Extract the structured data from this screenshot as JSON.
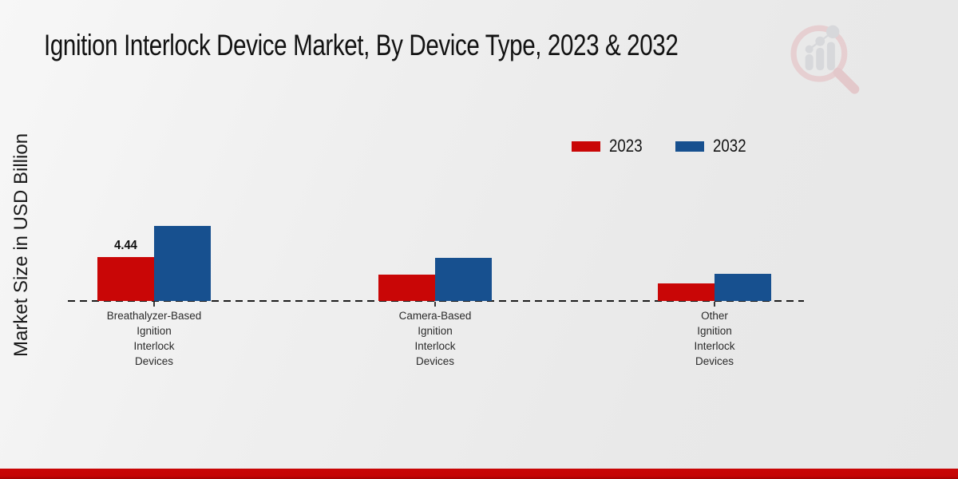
{
  "title": "Ignition Interlock Device Market, By Device Type, 2023 & 2032",
  "y_axis_label": "Market Size in USD Billion",
  "legend": {
    "items": [
      {
        "label": "2023",
        "color": "#c90606"
      },
      {
        "label": "2032",
        "color": "#17508f"
      }
    ]
  },
  "colors": {
    "series_2023": "#c90606",
    "series_2032": "#17508f",
    "background": "#ececec",
    "baseline": "#1c1c1c",
    "footer_strip": "#c50404",
    "watermark_glass_pink": "#e5b6ba",
    "watermark_bars_gray": "#c7c9ce"
  },
  "icons": {
    "watermark": "magnifier-bar-chart-logo"
  },
  "chart_data": {
    "type": "bar",
    "title": "Ignition Interlock Device Market, By Device Type, 2023 & 2032",
    "xlabel": "",
    "ylabel": "Market Size in USD Billion",
    "unit": "USD Billion",
    "categories": [
      "Breathalyzer-Based Ignition Interlock Devices",
      "Camera-Based Ignition Interlock Devices",
      "Other Ignition Interlock Devices"
    ],
    "category_label_lines": [
      [
        "Breathalyzer-Based",
        "Ignition",
        "Interlock",
        "Devices"
      ],
      [
        "Camera-Based",
        "Ignition",
        "Interlock",
        "Devices"
      ],
      [
        "Other",
        "Ignition",
        "Interlock",
        "Devices"
      ]
    ],
    "series": [
      {
        "name": "2023",
        "color": "#c90606",
        "values": [
          4.44,
          2.66,
          1.78
        ],
        "value_labels": [
          "4.44",
          "",
          ""
        ]
      },
      {
        "name": "2032",
        "color": "#17508f",
        "values": [
          7.59,
          4.36,
          2.74
        ],
        "value_labels": [
          "",
          "",
          ""
        ]
      }
    ],
    "ylim": [
      0,
      8
    ],
    "gridlines": false,
    "y_axis_ticks_visible": false,
    "baseline_style": "dashed",
    "legend_position": "top-right"
  }
}
